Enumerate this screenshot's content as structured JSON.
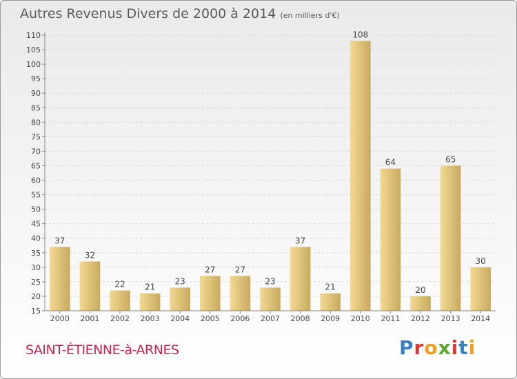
{
  "header": {
    "title": "Autres Revenus Divers de 2000 à 2014",
    "unit": "(en milliers d'€)"
  },
  "footer": {
    "place": "SAINT-ÉTIENNE-à-ARNES",
    "logo": "Proxiti",
    "logo_colors": [
      "#3b7fc4",
      "#e0372f",
      "#f0a020",
      "#5aa632",
      "#e0372f",
      "#3b7fc4",
      "#f0a020"
    ]
  },
  "colors": {
    "bar_light": "#f3d993",
    "bar_dark": "#c8aa5f",
    "grid": "#d6d6d6",
    "axis": "#888888"
  },
  "chart_data": {
    "type": "bar",
    "title": "Autres Revenus Divers de 2000 à 2014",
    "subtitle": "(en milliers d'€)",
    "categories": [
      "2000",
      "2001",
      "2002",
      "2003",
      "2004",
      "2005",
      "2006",
      "2007",
      "2008",
      "2009",
      "2010",
      "2011",
      "2012",
      "2013",
      "2014"
    ],
    "values": [
      37,
      32,
      22,
      21,
      23,
      27,
      27,
      23,
      37,
      21,
      108,
      64,
      20,
      65,
      30
    ],
    "ylim": [
      15,
      110
    ],
    "ytick_step": 5,
    "grid": true,
    "xlabel": "",
    "ylabel": ""
  }
}
